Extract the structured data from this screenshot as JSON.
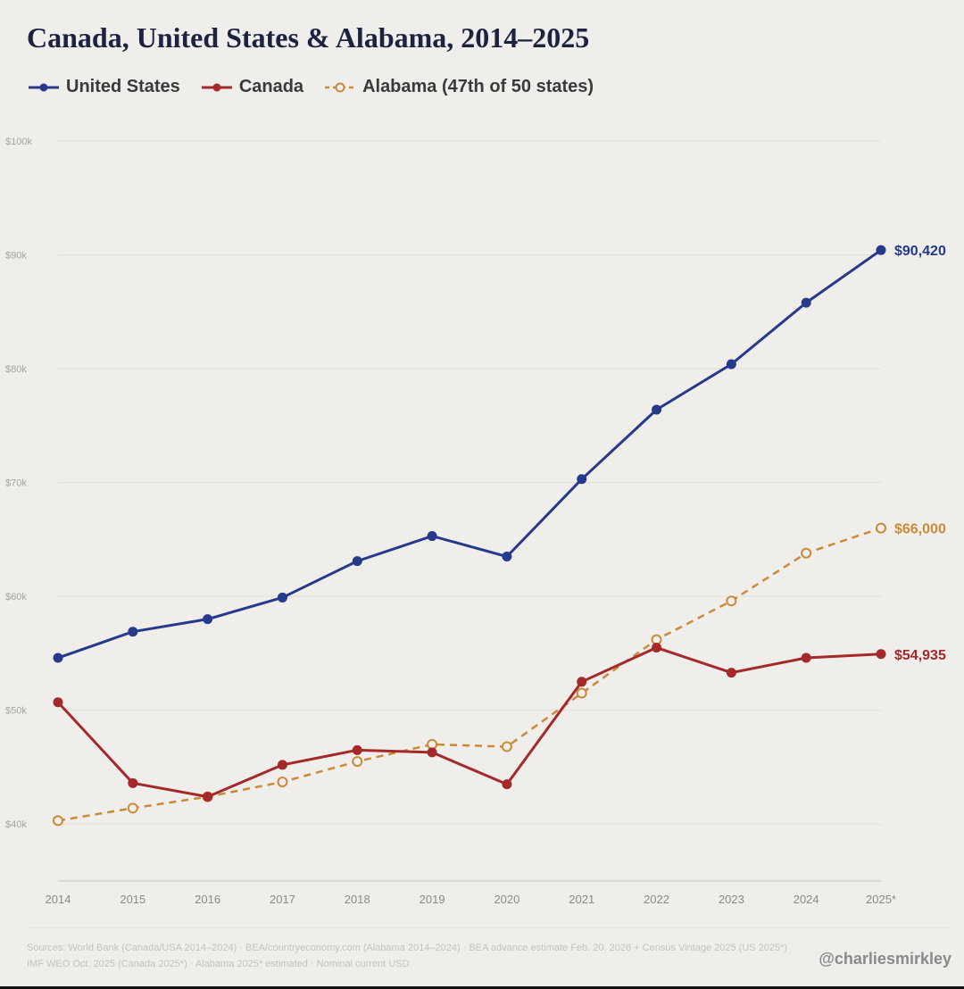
{
  "chart_data": {
    "type": "line",
    "title": "Canada, United States & Alabama, 2014–2025",
    "categories": [
      "2014",
      "2015",
      "2016",
      "2017",
      "2018",
      "2019",
      "2020",
      "2021",
      "2022",
      "2023",
      "2024",
      "2025*"
    ],
    "ylim": [
      35000,
      100000
    ],
    "yticks": [
      40000,
      50000,
      60000,
      70000,
      80000,
      90000,
      100000
    ],
    "ytick_labels": [
      "$40k",
      "$50k",
      "$60k",
      "$70k",
      "$80k",
      "$90k",
      "$100k"
    ],
    "grid": true,
    "legend_position": "top-left",
    "series": [
      {
        "name": "United States",
        "color": "#26398a",
        "dashed": false,
        "hollow": false,
        "values": [
          54600,
          56900,
          58000,
          59900,
          63100,
          65300,
          63500,
          70300,
          76400,
          80400,
          85800,
          90420
        ],
        "end_label": "$90,420"
      },
      {
        "name": "Canada",
        "color": "#a3292b",
        "dashed": false,
        "hollow": false,
        "values": [
          50700,
          43600,
          42400,
          45200,
          46500,
          46300,
          43500,
          52500,
          55500,
          53300,
          54600,
          54935
        ],
        "end_label": "$54,935"
      },
      {
        "name": "Alabama (47th of 50 states)",
        "color": "#c98a3a",
        "dashed": true,
        "hollow": true,
        "values": [
          40300,
          41400,
          42400,
          43700,
          45500,
          47000,
          46800,
          51500,
          56200,
          59600,
          63800,
          66000
        ],
        "end_label": "$66,000"
      }
    ]
  },
  "footer": {
    "sources_line1": "Sources: World Bank (Canada/USA 2014–2024)  ·  BEA/countryeconomy.com (Alabama 2014–2024)  ·  BEA advance estimate Feb. 20, 2026 + Census Vintage 2025 (US 2025*)",
    "sources_line2": "IMF WEO Oct. 2025 (Canada 2025*)  ·  Alabama 2025* estimated  ·  Nominal current USD",
    "credit": "@charliesmirkley"
  }
}
